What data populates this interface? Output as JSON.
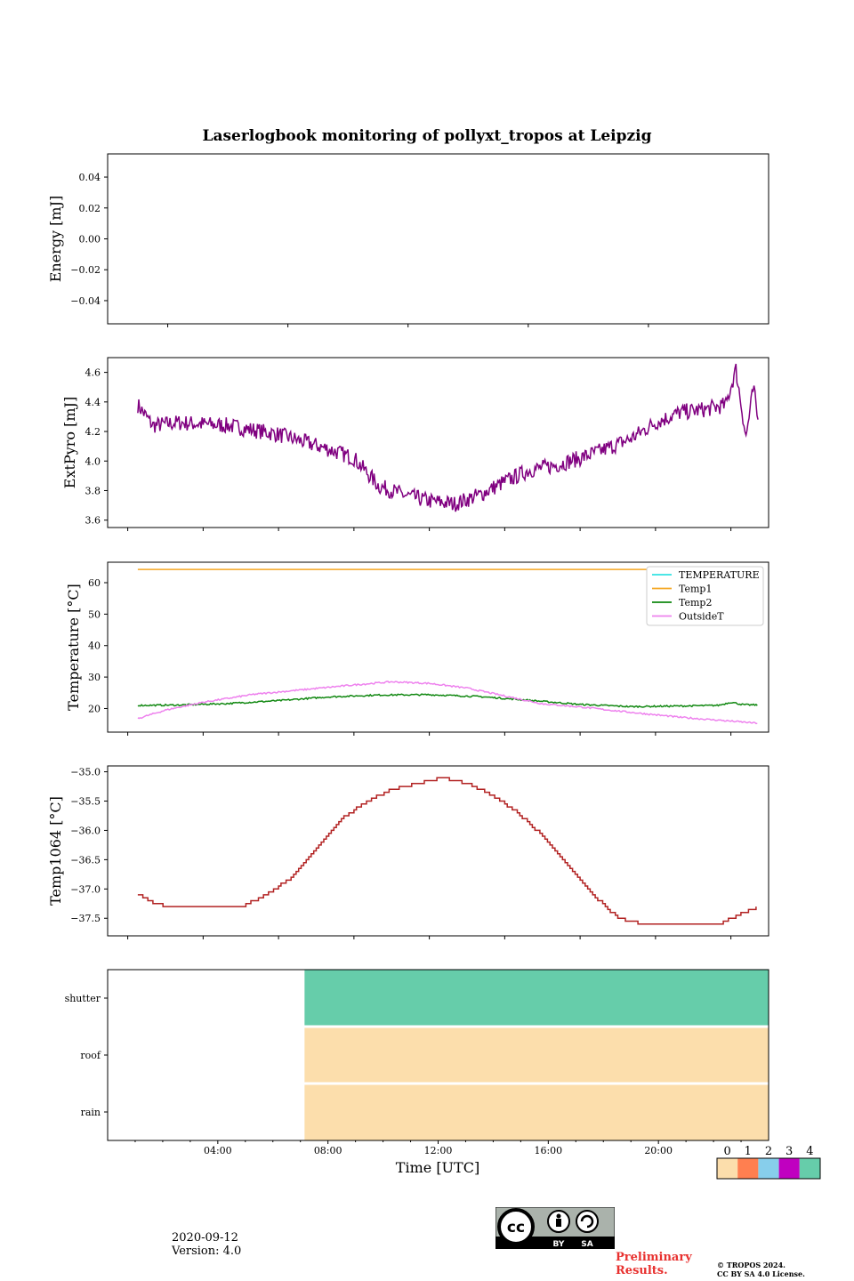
{
  "chart_data": [
    {
      "type": "line",
      "title": "Laserlogbook monitoring of pollyxt_tropos at Leipzig",
      "ylabel": "Energy [mJ]",
      "ylim": [
        -0.055,
        0.055
      ],
      "yticks": [
        0.04,
        0.02,
        0.0,
        -0.02,
        -0.04
      ],
      "ytick_labels": [
        "0.04",
        "0.02",
        "0.00",
        "−0.02",
        "−0.04"
      ],
      "xlim_hours": [
        -3,
        30
      ],
      "series": []
    },
    {
      "type": "line",
      "ylabel": "ExtPyro [mJ]",
      "ylim": [
        3.55,
        4.7
      ],
      "yticks": [
        4.6,
        4.4,
        4.2,
        4.0,
        3.8,
        3.6
      ],
      "ytick_labels": [
        "4.6",
        "4.4",
        "4.2",
        "4.0",
        "3.8",
        "3.6"
      ],
      "xlim_hours": [
        -0.8,
        25.5
      ],
      "series": [
        {
          "name": "ExtPyro",
          "color": "#800080",
          "x": [
            0.4,
            1,
            2,
            3,
            4,
            5,
            6,
            7,
            8,
            9,
            10,
            11,
            12,
            13,
            14,
            15,
            16,
            17,
            18,
            19,
            20,
            21,
            22,
            23,
            23.8,
            24.2,
            24.6,
            24.9,
            25.1
          ],
          "y": [
            4.38,
            4.24,
            4.26,
            4.25,
            4.24,
            4.21,
            4.18,
            4.13,
            4.08,
            4.02,
            3.83,
            3.77,
            3.73,
            3.71,
            3.77,
            3.86,
            3.94,
            3.97,
            4.02,
            4.08,
            4.15,
            4.26,
            4.33,
            4.35,
            4.38,
            4.62,
            4.16,
            4.5,
            4.24
          ]
        }
      ]
    },
    {
      "type": "line",
      "ylabel": "Temperature [°C]",
      "ylim": [
        12.5,
        66.5
      ],
      "yticks": [
        60,
        50,
        40,
        30,
        20
      ],
      "ytick_labels": [
        "60",
        "50",
        "40",
        "30",
        "20"
      ],
      "xlim_hours": [
        -0.8,
        25.5
      ],
      "legend": [
        "TEMPERATURE",
        "Temp1",
        "Temp2",
        "OutsideT"
      ],
      "series": [
        {
          "name": "TEMPERATURE",
          "color": "#33e3e3",
          "x": [],
          "y": []
        },
        {
          "name": "Temp1",
          "color": "#f5a623",
          "x": [
            0.4,
            25.1
          ],
          "y": [
            64.2,
            64.2
          ]
        },
        {
          "name": "Temp2",
          "color": "#118811",
          "x": [
            0.4,
            2,
            4,
            6,
            8,
            10,
            12,
            14,
            16,
            18,
            20,
            22,
            23.5,
            24,
            24.5,
            25.1
          ],
          "y": [
            21.0,
            21.1,
            21.6,
            22.5,
            23.7,
            24.3,
            24.4,
            23.8,
            22.6,
            21.3,
            20.6,
            20.8,
            21.0,
            22.0,
            21.2,
            21.1
          ]
        },
        {
          "name": "OutsideT",
          "color": "#ee82ee",
          "x": [
            0.4,
            1.5,
            3,
            5,
            7,
            9,
            10.5,
            12,
            13.5,
            15,
            16.5,
            18,
            20,
            22,
            24,
            25.1
          ],
          "y": [
            16.8,
            19.5,
            22.0,
            24.5,
            26.0,
            27.5,
            28.5,
            28.0,
            26.5,
            24.0,
            21.5,
            20.5,
            18.8,
            17.2,
            16.0,
            15.3
          ]
        }
      ]
    },
    {
      "type": "line",
      "ylabel": "Temp1064 [°C]",
      "ylim": [
        -37.8,
        -34.9
      ],
      "yticks": [
        -35.0,
        -35.5,
        -36.0,
        -36.5,
        -37.0,
        -37.5
      ],
      "ytick_labels": [
        "−35.0",
        "−35.5",
        "−36.0",
        "−36.5",
        "−37.0",
        "−37.5"
      ],
      "xlim_hours": [
        -0.8,
        25.5
      ],
      "series": [
        {
          "name": "Temp1064",
          "color": "#b22222",
          "x": [
            0.4,
            0.8,
            1.5,
            2.5,
            3.5,
            4.5,
            5.5,
            6.5,
            7.5,
            8.5,
            9.5,
            10.5,
            11.5,
            12.5,
            13.5,
            14.5,
            15.5,
            16.5,
            17.5,
            18.5,
            19.5,
            20.5,
            21.5,
            22.5,
            23.5,
            24.5,
            25.1
          ],
          "y": [
            -37.1,
            -37.2,
            -37.3,
            -37.3,
            -37.3,
            -37.3,
            -37.1,
            -36.8,
            -36.3,
            -35.8,
            -35.5,
            -35.3,
            -35.2,
            -35.1,
            -35.2,
            -35.4,
            -35.7,
            -36.1,
            -36.6,
            -37.1,
            -37.5,
            -37.6,
            -37.6,
            -37.6,
            -37.6,
            -37.4,
            -37.3
          ]
        }
      ]
    },
    {
      "type": "heatmap",
      "xlabel": "Time [UTC]",
      "rows": [
        "shutter",
        "roof",
        "rain"
      ],
      "xtick_labels": [
        "04:00",
        "08:00",
        "12:00",
        "16:00",
        "20:00"
      ],
      "xticks_hours": [
        4,
        8,
        12,
        16,
        20
      ],
      "xlim_hours": [
        0,
        24
      ],
      "blocks": [
        {
          "row": "shutter",
          "start_hour": 7.15,
          "end_hour": 24,
          "value": 4
        },
        {
          "row": "roof",
          "start_hour": 7.15,
          "end_hour": 24,
          "value": 0
        },
        {
          "row": "rain",
          "start_hour": 7.15,
          "end_hour": 24,
          "value": 0
        }
      ],
      "colorbar": {
        "labels": [
          "0",
          "1",
          "2",
          "3",
          "4"
        ],
        "colors": [
          "#fcdeac",
          "#ff7f50",
          "#87ceeb",
          "#c000c0",
          "#66cdaa"
        ]
      }
    }
  ],
  "footer": {
    "date": "2020-09-12",
    "version": "Version: 4.0",
    "preliminary": "Preliminary Results.",
    "copyright_line1": "© TROPOS 2024.",
    "copyright_line2": "CC BY SA 4.0 License.",
    "cc_by": "BY",
    "cc_sa": "SA",
    "cc": "cc"
  }
}
